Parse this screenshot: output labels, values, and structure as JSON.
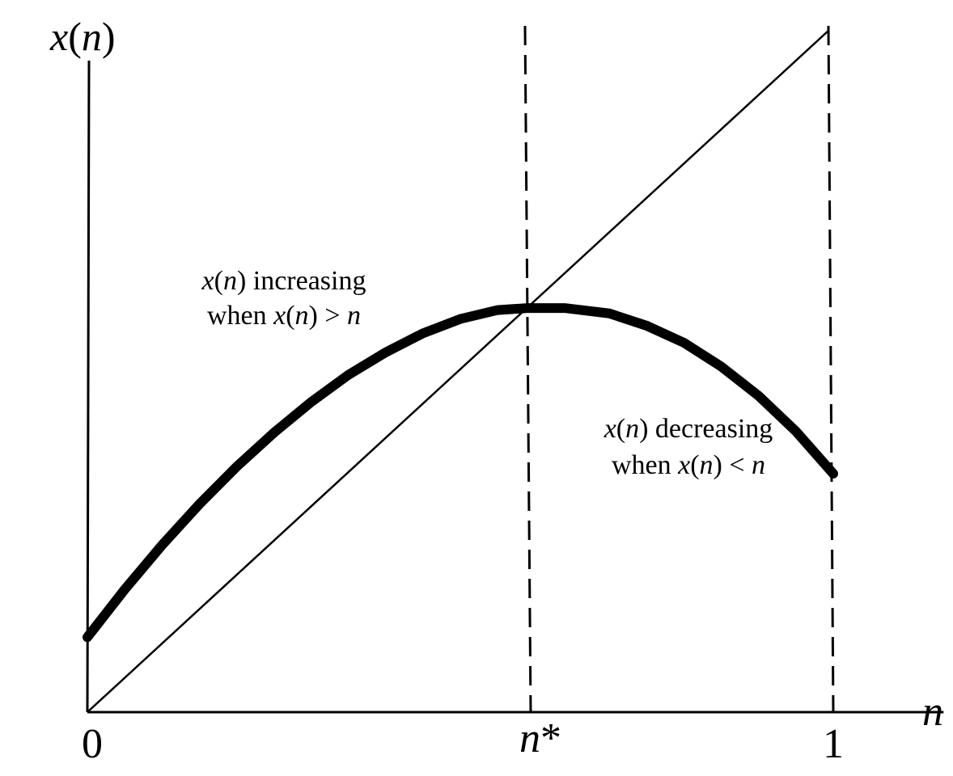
{
  "chart_data": {
    "type": "line",
    "title": "",
    "xlabel": "n",
    "ylabel": "x(n)",
    "xlim": [
      0,
      1.15
    ],
    "ylim": [
      0,
      1.12
    ],
    "x_ticks": [
      {
        "value": 0,
        "label": "0"
      },
      {
        "value": 0.59,
        "label": "n*"
      },
      {
        "value": 1,
        "label": "1"
      }
    ],
    "series": [
      {
        "name": "",
        "kind": "curve",
        "x": [
          0,
          0.05,
          0.1,
          0.15,
          0.2,
          0.25,
          0.3,
          0.35,
          0.4,
          0.45,
          0.5,
          0.55,
          0.59,
          0.64,
          0.7,
          0.75,
          0.8,
          0.85,
          0.9,
          0.95,
          1.0
        ],
        "y": [
          0.11,
          0.18,
          0.245,
          0.305,
          0.36,
          0.41,
          0.455,
          0.495,
          0.528,
          0.556,
          0.577,
          0.59,
          0.593,
          0.593,
          0.585,
          0.567,
          0.542,
          0.507,
          0.464,
          0.412,
          0.35
        ]
      },
      {
        "name": "",
        "kind": "diagonal",
        "x": [
          0,
          1
        ],
        "y": [
          0,
          1
        ]
      }
    ],
    "reference_lines": [
      {
        "axis": "x",
        "value": 0.59,
        "style": "dashed"
      },
      {
        "axis": "x",
        "value": 1,
        "style": "dashed"
      }
    ],
    "annotations": {
      "increasing": {
        "line1_italic": "x",
        "line1_paren_open": "(",
        "line1_italic2": "n",
        "line1_rest": ") increasing",
        "line2_word": "when ",
        "line2_italic": "x",
        "line2_paren_open": "(",
        "line2_italic2": "n",
        "line2_mid": ") > ",
        "line2_italic3": "n"
      },
      "decreasing": {
        "line1_italic": "x",
        "line1_paren_open": "(",
        "line1_italic2": "n",
        "line1_rest": ") decreasing",
        "line2_word": "when ",
        "line2_italic": "x",
        "line2_paren_open": "(",
        "line2_italic2": "n",
        "line2_mid": ") < ",
        "line2_italic3": "n"
      }
    },
    "ylabel_parts": {
      "x": "x",
      "open": "(",
      "n": "n",
      "close": ")"
    },
    "nstar_parts": {
      "n": "n",
      "star": "*"
    },
    "grid": false,
    "legend": "none"
  }
}
